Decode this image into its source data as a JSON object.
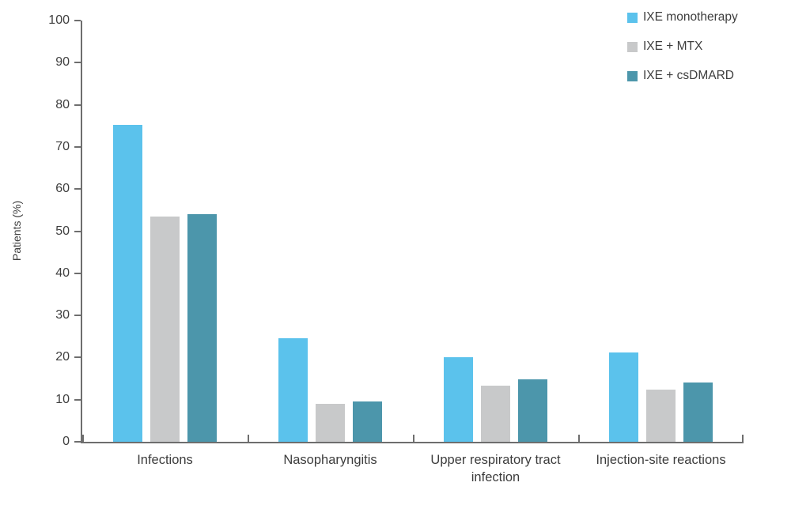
{
  "chart_data": {
    "type": "bar",
    "title": "",
    "xlabel": "",
    "ylabel": "Patients (%)",
    "ylim": [
      0,
      100
    ],
    "ytick_step": 10,
    "yticks": [
      0,
      10,
      20,
      30,
      40,
      50,
      60,
      70,
      80,
      90,
      100
    ],
    "grid": false,
    "legend_position": "top-right",
    "categories": [
      "Infections",
      "Nasopharyngitis",
      "Upper respiratory tract infection",
      "Injection-site reactions"
    ],
    "series": [
      {
        "name": "IXE monotherapy",
        "color": "#5BC2EC",
        "values": [
          75.3,
          24.6,
          20.1,
          21.2
        ]
      },
      {
        "name": "IXE + MTX",
        "color": "#C8C9CA",
        "values": [
          53.4,
          9.0,
          13.4,
          12.4
        ]
      },
      {
        "name": "IXE + csDMARD",
        "color": "#4C96AB",
        "values": [
          54.0,
          9.6,
          14.9,
          14.1
        ]
      }
    ]
  },
  "colors": {
    "axis": "#6e6e6e",
    "text": "#3f3f3f"
  }
}
